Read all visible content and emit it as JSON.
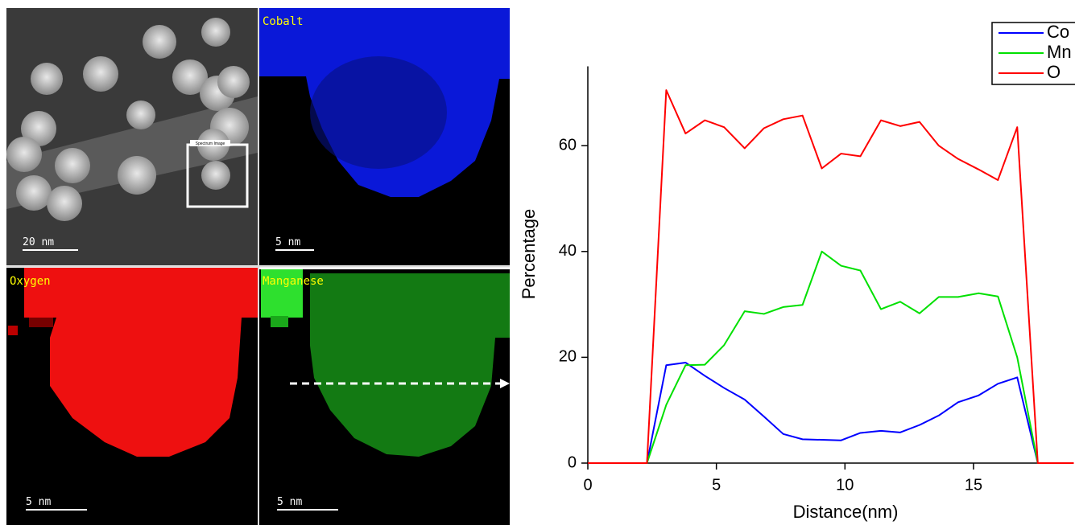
{
  "maps": [
    {
      "scale": "20 nm",
      "inset": "Spectrum Image"
    },
    {
      "label": "Cobalt",
      "scale": "5 nm"
    },
    {
      "label": "Oxygen",
      "scale": "5 nm"
    },
    {
      "label": "Manganese",
      "scale": "5 nm"
    }
  ],
  "chart_data": {
    "type": "line",
    "x_label": "Distance(nm)",
    "y_label": "Percentage",
    "x": [
      0,
      2.3,
      3.05,
      3.8,
      4.55,
      5.3,
      6.1,
      6.85,
      7.6,
      8.35,
      9.1,
      9.85,
      10.6,
      11.4,
      12.15,
      12.9,
      13.65,
      14.4,
      15.2,
      15.95,
      16.7,
      17.5,
      18.9
    ],
    "series": [
      {
        "name": "Co",
        "color": "#0000ff",
        "values": [
          0,
          0,
          18.5,
          19,
          16.5,
          14.2,
          12,
          8.8,
          5.5,
          4.5,
          4.4,
          4.3,
          5.7,
          6.1,
          5.8,
          7.2,
          9,
          11.5,
          12.8,
          15,
          16.2,
          0,
          0
        ]
      },
      {
        "name": "Mn",
        "color": "#00e000",
        "values": [
          0,
          0,
          11,
          18.5,
          18.6,
          22.3,
          28.7,
          28.2,
          29.5,
          29.9,
          40,
          37.3,
          36.4,
          29.1,
          30.5,
          28.3,
          31.4,
          31.4,
          32.1,
          31.5,
          20,
          0,
          0
        ]
      },
      {
        "name": "O",
        "color": "#ff0000",
        "values": [
          0,
          0,
          70.5,
          62.3,
          64.8,
          63.5,
          59.5,
          63.3,
          65,
          65.7,
          55.7,
          58.5,
          58,
          64.8,
          63.7,
          64.5,
          60,
          57.5,
          55.5,
          53.5,
          63.5,
          0,
          0
        ]
      }
    ],
    "xlim": [
      0,
      18.9
    ],
    "ylim": [
      0,
      75
    ],
    "xticks": [
      0,
      5,
      10,
      15
    ],
    "yticks": [
      0,
      20,
      40,
      60
    ],
    "legend": "top-right"
  }
}
